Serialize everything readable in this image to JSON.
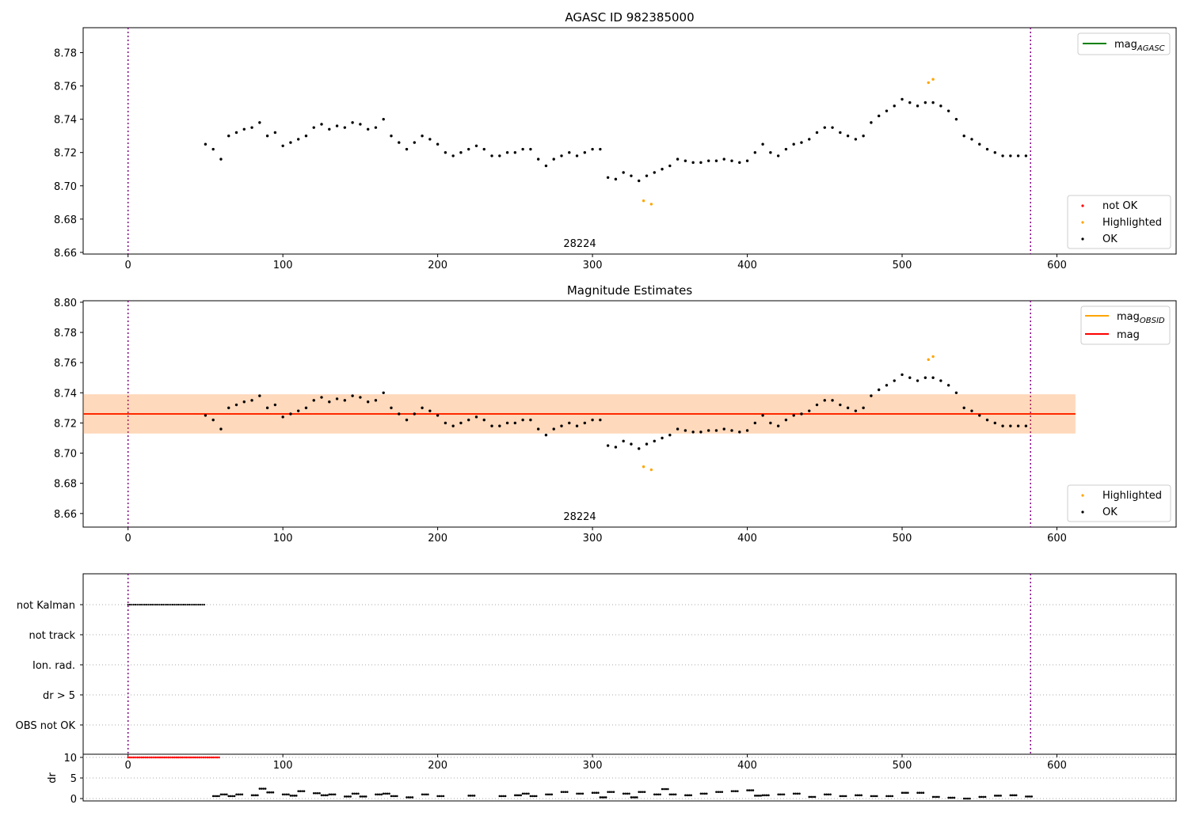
{
  "chart_data": [
    {
      "type": "scatter",
      "title": "AGASC ID 982385000",
      "xlim": [
        -29,
        677
      ],
      "ylim": [
        8.659,
        8.795
      ],
      "yticks": [
        8.66,
        8.68,
        8.7,
        8.72,
        8.74,
        8.76,
        8.78
      ],
      "xticks": [
        0,
        100,
        200,
        300,
        400,
        500,
        600
      ],
      "annotation": "28224",
      "vlines": [
        0,
        583
      ],
      "legend_lines": [
        {
          "label": "mag",
          "sub": "AGASC",
          "color": "#008000"
        }
      ],
      "legend_points": [
        {
          "label": "not OK",
          "color": "#ff0000"
        },
        {
          "label": "Highlighted",
          "color": "#ffa500"
        },
        {
          "label": "OK",
          "color": "#000000"
        }
      ],
      "ok": {
        "x": [
          50,
          55,
          60,
          65,
          70,
          75,
          80,
          85,
          90,
          95,
          100,
          105,
          110,
          115,
          120,
          125,
          130,
          135,
          140,
          145,
          150,
          155,
          160,
          165,
          170,
          175,
          180,
          185,
          190,
          195,
          200,
          205,
          210,
          215,
          220,
          225,
          230,
          235,
          240,
          245,
          250,
          255,
          260,
          265,
          270,
          275,
          280,
          285,
          290,
          295,
          300,
          305,
          310,
          315,
          320,
          325,
          330,
          335,
          340,
          345,
          350,
          355,
          360,
          365,
          370,
          375,
          380,
          385,
          390,
          395,
          400,
          405,
          410,
          415,
          420,
          425,
          430,
          435,
          440,
          445,
          450,
          455,
          460,
          465,
          470,
          475,
          480,
          485,
          490,
          495,
          500,
          505,
          510,
          515,
          520,
          525,
          530,
          535,
          540,
          545,
          550,
          555,
          560,
          565,
          570,
          575,
          580
        ],
        "y": [
          8.725,
          8.722,
          8.716,
          8.73,
          8.732,
          8.734,
          8.735,
          8.738,
          8.73,
          8.732,
          8.724,
          8.726,
          8.728,
          8.73,
          8.735,
          8.737,
          8.734,
          8.736,
          8.735,
          8.738,
          8.737,
          8.734,
          8.735,
          8.74,
          8.73,
          8.726,
          8.722,
          8.726,
          8.73,
          8.728,
          8.725,
          8.72,
          8.718,
          8.72,
          8.722,
          8.724,
          8.722,
          8.718,
          8.718,
          8.72,
          8.72,
          8.722,
          8.722,
          8.716,
          8.712,
          8.716,
          8.718,
          8.72,
          8.718,
          8.72,
          8.722,
          8.722,
          8.705,
          8.704,
          8.708,
          8.706,
          8.703,
          8.706,
          8.708,
          8.71,
          8.712,
          8.716,
          8.715,
          8.714,
          8.714,
          8.715,
          8.715,
          8.716,
          8.715,
          8.714,
          8.715,
          8.72,
          8.725,
          8.72,
          8.718,
          8.722,
          8.725,
          8.726,
          8.728,
          8.732,
          8.735,
          8.735,
          8.732,
          8.73,
          8.728,
          8.73,
          8.738,
          8.742,
          8.745,
          8.748,
          8.752,
          8.75,
          8.748,
          8.75,
          8.75,
          8.748,
          8.745,
          8.74,
          8.73,
          8.728,
          8.725,
          8.722,
          8.72,
          8.718,
          8.718,
          8.718,
          8.718
        ]
      },
      "highlighted": {
        "x": [
          333,
          338,
          517,
          520
        ],
        "y": [
          8.691,
          8.689,
          8.762,
          8.764
        ]
      }
    },
    {
      "type": "scatter",
      "title": "Magnitude Estimates",
      "xlim": [
        -29,
        677
      ],
      "ylim": [
        8.651,
        8.801
      ],
      "yticks": [
        8.66,
        8.68,
        8.7,
        8.72,
        8.74,
        8.76,
        8.78,
        8.8
      ],
      "xticks": [
        0,
        100,
        200,
        300,
        400,
        500,
        600
      ],
      "annotation": "28224",
      "vlines": [
        0,
        583
      ],
      "mag_obsid": 8.726,
      "mag": 8.726,
      "mag_band": [
        8.713,
        8.739
      ],
      "line_xrange": [
        -29,
        612
      ],
      "legend_lines": [
        {
          "label": "mag",
          "sub": "OBSID",
          "color": "#ffa500"
        },
        {
          "label": "mag",
          "sub": "",
          "color": "#ff0000"
        }
      ],
      "legend_points": [
        {
          "label": "Highlighted",
          "color": "#ffa500"
        },
        {
          "label": "OK",
          "color": "#000000"
        }
      ]
    },
    {
      "type": "scatter",
      "flags": [
        "not Kalman",
        "not track",
        "Ion. rad.",
        "dr > 5",
        "OBS not OK"
      ],
      "not_kalman_x": [
        0,
        50
      ],
      "xlim": [
        -29,
        677
      ],
      "xticks": [
        0,
        100,
        200,
        300,
        400,
        500,
        600
      ],
      "ylabel": "dr",
      "yticks": [
        0,
        5,
        10
      ],
      "dr": {
        "x": [
          0,
          10,
          20,
          30,
          40,
          50,
          55,
          60,
          65,
          70,
          80,
          85,
          90,
          100,
          105,
          110,
          120,
          125,
          130,
          140,
          145,
          150,
          160,
          165,
          170,
          180,
          190,
          200,
          220,
          240,
          250,
          255,
          260,
          270,
          280,
          290,
          300,
          305,
          310,
          320,
          325,
          330,
          340,
          345,
          350,
          360,
          370,
          380,
          390,
          400,
          405,
          410,
          420,
          430,
          440,
          450,
          460,
          470,
          480,
          490,
          500,
          510,
          520,
          530,
          540,
          550,
          560,
          570,
          580
        ],
        "y": [
          10,
          10,
          10,
          10,
          10,
          10,
          0.6,
          1.0,
          0.6,
          1.0,
          0.8,
          2.4,
          1.5,
          1.0,
          0.7,
          1.8,
          1.3,
          0.8,
          1.0,
          0.5,
          1.2,
          0.5,
          1.0,
          1.2,
          0.6,
          0.3,
          1.0,
          0.6,
          0.7,
          0.6,
          0.8,
          1.2,
          0.6,
          1.0,
          1.6,
          1.2,
          1.4,
          0.3,
          1.6,
          1.2,
          0.3,
          1.6,
          1.0,
          2.3,
          1.0,
          0.8,
          1.2,
          1.6,
          1.8,
          2.0,
          0.7,
          0.8,
          1.0,
          1.2,
          0.4,
          1.0,
          0.6,
          0.8,
          0.6,
          0.6,
          1.4,
          1.4,
          0.4,
          0.2,
          0.0,
          0.4,
          0.7,
          0.8,
          0.5
        ]
      }
    }
  ]
}
